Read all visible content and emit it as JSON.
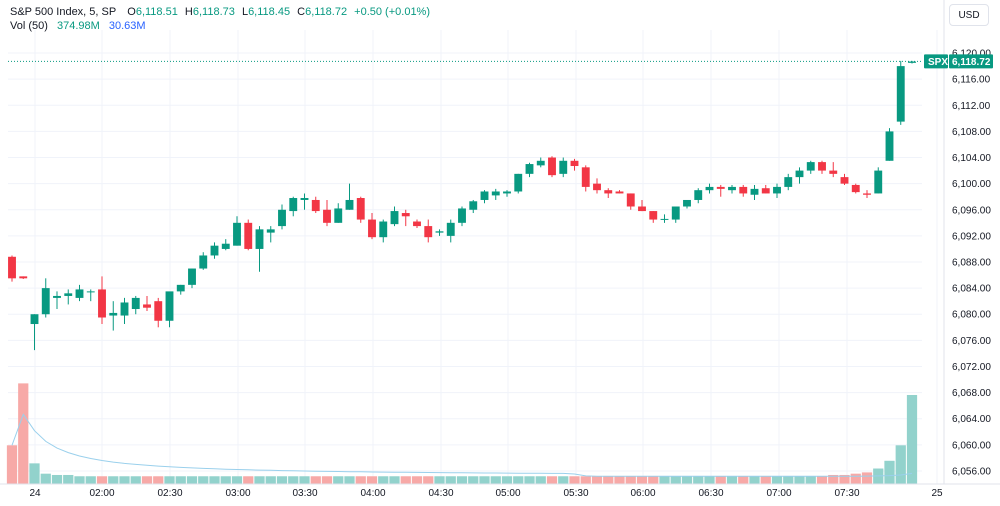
{
  "legend": {
    "symbol": "S&P 500 Index, 5, SP",
    "open_label": "O",
    "open": "6,118.51",
    "high_label": "H",
    "high": "6,118.73",
    "low_label": "L",
    "low": "6,118.45",
    "close_label": "C",
    "close": "6,118.72",
    "change": "+0.50 (+0.01%)"
  },
  "volume_legend": {
    "label": "Vol (50)",
    "volume": "374.98M",
    "ma": "30.63M"
  },
  "currency_button": "USD",
  "colors": {
    "up": "#089981",
    "down": "#f23645",
    "vol_up": "#92d2cc",
    "vol_down": "#f7a9a7",
    "vol_ma": "#9ad0ec",
    "grid": "#f0f3fa",
    "last_price_line": "#089981"
  },
  "chart_data": {
    "type": "candlestick",
    "timeframe": "5 min",
    "ylim": [
      6054,
      6122
    ],
    "y_ticks": [
      "6,056.00",
      "6,060.00",
      "6,064.00",
      "6,068.00",
      "6,072.00",
      "6,076.00",
      "6,080.00",
      "6,084.00",
      "6,088.00",
      "6,092.00",
      "6,096.00",
      "6,100.00",
      "6,104.00",
      "6,108.00",
      "6,112.00",
      "6,116.00",
      "6,120.00"
    ],
    "x_ticks": [
      "24",
      "02:00",
      "02:30",
      "03:00",
      "03:30",
      "04:00",
      "04:30",
      "05:00",
      "05:30",
      "06:00",
      "06:30",
      "07:00",
      "07:30",
      "25"
    ],
    "last_price_label": "SPX",
    "last_price": "6,118.72",
    "last_price_value": 6118.72,
    "ohlc": [
      [
        6088.8,
        6089.0,
        6085.0,
        6085.5
      ],
      [
        6085.8,
        6085.8,
        6085.4,
        6085.5
      ],
      [
        6078.5,
        6080.0,
        6074.5,
        6080.0
      ],
      [
        6080.0,
        6085.5,
        6079.5,
        6084.0
      ],
      [
        6082.5,
        6083.5,
        6080.8,
        6082.8
      ],
      [
        6082.8,
        6083.8,
        6081.5,
        6083.2
      ],
      [
        6082.5,
        6084.5,
        6082.0,
        6083.8
      ],
      [
        6083.5,
        6083.8,
        6082.0,
        6083.5
      ],
      [
        6083.8,
        6085.8,
        6078.5,
        6079.5
      ],
      [
        6079.8,
        6082.0,
        6077.5,
        6080.2
      ],
      [
        6079.8,
        6082.5,
        6078.5,
        6081.8
      ],
      [
        6080.8,
        6082.8,
        6080.0,
        6082.5
      ],
      [
        6081.5,
        6082.8,
        6080.5,
        6081.0
      ],
      [
        6082.0,
        6082.5,
        6078.0,
        6079.0
      ],
      [
        6079.0,
        6083.0,
        6078.0,
        6083.5
      ],
      [
        6083.5,
        6084.5,
        6083.0,
        6084.5
      ],
      [
        6084.5,
        6087.0,
        6084.0,
        6087.0
      ],
      [
        6087.0,
        6089.5,
        6086.8,
        6089.0
      ],
      [
        6089.0,
        6091.0,
        6088.5,
        6090.5
      ],
      [
        6090.0,
        6091.5,
        6089.8,
        6090.8
      ],
      [
        6090.5,
        6095.0,
        6090.5,
        6094.0
      ],
      [
        6094.0,
        6094.5,
        6089.8,
        6090.0
      ],
      [
        6090.0,
        6093.5,
        6086.5,
        6093.0
      ],
      [
        6092.5,
        6093.5,
        6091.0,
        6093.0
      ],
      [
        6093.5,
        6096.8,
        6093.0,
        6096.0
      ],
      [
        6095.8,
        6098.0,
        6095.0,
        6097.8
      ],
      [
        6097.5,
        6098.5,
        6096.0,
        6097.8
      ],
      [
        6097.5,
        6098.0,
        6095.5,
        6095.8
      ],
      [
        6096.0,
        6097.5,
        6093.5,
        6094.0
      ],
      [
        6094.0,
        6097.0,
        6094.0,
        6096.2
      ],
      [
        6096.0,
        6100.0,
        6096.0,
        6097.5
      ],
      [
        6097.8,
        6098.0,
        6094.0,
        6094.5
      ],
      [
        6094.5,
        6095.5,
        6091.5,
        6091.8
      ],
      [
        6091.8,
        6094.5,
        6091.0,
        6094.2
      ],
      [
        6093.8,
        6096.5,
        6093.5,
        6095.8
      ],
      [
        6095.5,
        6096.0,
        6093.5,
        6095.0
      ],
      [
        6094.2,
        6094.5,
        6093.2,
        6093.5
      ],
      [
        6093.5,
        6094.5,
        6091.0,
        6091.8
      ],
      [
        6092.5,
        6093.0,
        6092.0,
        6092.7
      ],
      [
        6092.0,
        6094.5,
        6091.0,
        6094.0
      ],
      [
        6094.0,
        6096.5,
        6093.5,
        6096.2
      ],
      [
        6096.0,
        6097.5,
        6095.5,
        6097.3
      ],
      [
        6097.5,
        6099.0,
        6097.0,
        6098.8
      ],
      [
        6098.2,
        6099.2,
        6097.5,
        6098.8
      ],
      [
        6098.5,
        6099.0,
        6098.0,
        6098.8
      ],
      [
        6098.8,
        6101.5,
        6098.5,
        6101.5
      ],
      [
        6101.5,
        6103.2,
        6101.0,
        6103.0
      ],
      [
        6102.8,
        6104.0,
        6102.5,
        6103.5
      ],
      [
        6104.0,
        6104.2,
        6101.0,
        6101.3
      ],
      [
        6101.5,
        6104.0,
        6101.0,
        6103.5
      ],
      [
        6103.5,
        6103.8,
        6102.0,
        6102.7
      ],
      [
        6102.5,
        6102.8,
        6098.8,
        6099.5
      ],
      [
        6100.0,
        6100.8,
        6098.5,
        6099.0
      ],
      [
        6099.0,
        6099.3,
        6097.8,
        6098.5
      ],
      [
        6098.8,
        6099.0,
        6098.5,
        6098.5
      ],
      [
        6098.5,
        6098.5,
        6096.0,
        6096.5
      ],
      [
        6096.5,
        6097.5,
        6095.8,
        6095.8
      ],
      [
        6095.8,
        6095.8,
        6094.0,
        6094.5
      ],
      [
        6094.5,
        6095.3,
        6094.0,
        6094.6
      ],
      [
        6094.5,
        6096.5,
        6094.0,
        6096.5
      ],
      [
        6096.5,
        6097.5,
        6096.2,
        6097.5
      ],
      [
        6097.5,
        6099.3,
        6097.0,
        6099.0
      ],
      [
        6099.0,
        6100.0,
        6098.5,
        6099.5
      ],
      [
        6099.5,
        6099.8,
        6098.0,
        6099.2
      ],
      [
        6099.0,
        6099.8,
        6098.5,
        6099.5
      ],
      [
        6099.5,
        6099.8,
        6098.0,
        6098.5
      ],
      [
        6098.3,
        6099.8,
        6097.5,
        6099.2
      ],
      [
        6099.3,
        6099.8,
        6098.5,
        6098.5
      ],
      [
        6098.5,
        6100.0,
        6097.8,
        6099.5
      ],
      [
        6099.5,
        6101.5,
        6099.0,
        6101.0
      ],
      [
        6101.0,
        6102.5,
        6100.0,
        6102.0
      ],
      [
        6102.0,
        6103.5,
        6101.5,
        6103.3
      ],
      [
        6103.3,
        6103.5,
        6101.5,
        6102.0
      ],
      [
        6102.0,
        6103.3,
        6101.0,
        6101.5
      ],
      [
        6101.0,
        6101.5,
        6099.8,
        6100.0
      ],
      [
        6099.8,
        6100.0,
        6098.5,
        6098.7
      ],
      [
        6098.5,
        6099.0,
        6097.8,
        6098.3
      ],
      [
        6098.5,
        6102.5,
        6098.5,
        6102.0
      ],
      [
        6103.5,
        6108.5,
        6103.5,
        6108.0
      ],
      [
        6109.5,
        6118.8,
        6109.0,
        6118.0
      ],
      [
        6118.5,
        6118.8,
        6118.4,
        6118.7
      ]
    ],
    "volume_relative": [
      0.3,
      0.78,
      0.16,
      0.08,
      0.07,
      0.07,
      0.06,
      0.06,
      0.06,
      0.06,
      0.06,
      0.06,
      0.06,
      0.06,
      0.06,
      0.06,
      0.06,
      0.06,
      0.06,
      0.06,
      0.06,
      0.06,
      0.06,
      0.06,
      0.06,
      0.06,
      0.06,
      0.06,
      0.06,
      0.06,
      0.06,
      0.06,
      0.06,
      0.06,
      0.06,
      0.06,
      0.06,
      0.06,
      0.06,
      0.06,
      0.06,
      0.06,
      0.06,
      0.06,
      0.06,
      0.06,
      0.06,
      0.06,
      0.06,
      0.06,
      0.06,
      0.06,
      0.06,
      0.06,
      0.06,
      0.06,
      0.06,
      0.06,
      0.06,
      0.06,
      0.06,
      0.06,
      0.06,
      0.06,
      0.06,
      0.06,
      0.06,
      0.06,
      0.06,
      0.06,
      0.06,
      0.06,
      0.06,
      0.07,
      0.07,
      0.08,
      0.09,
      0.12,
      0.18,
      0.3,
      0.69
    ]
  }
}
